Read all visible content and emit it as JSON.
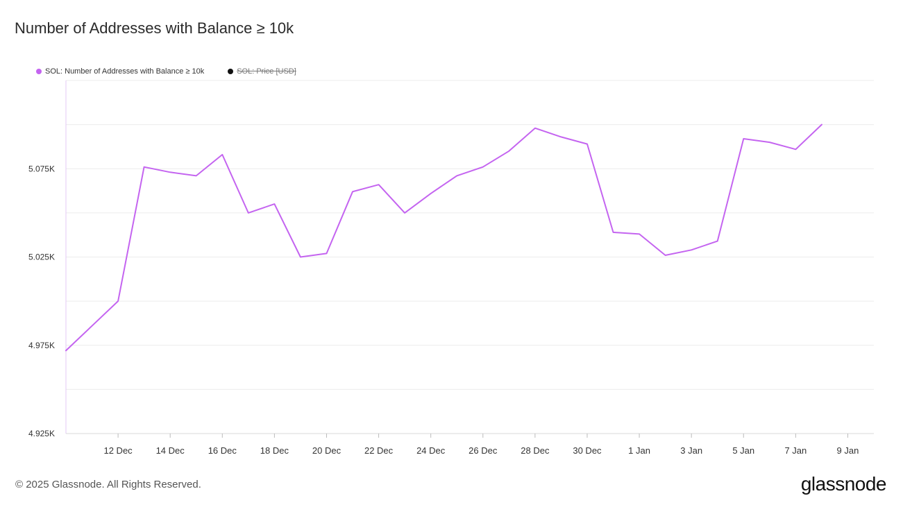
{
  "title": "Number of Addresses with Balance ≥ 10k",
  "legend": [
    {
      "label": "SOL: Number of Addresses with Balance ≥ 10k",
      "color": "#c464f0",
      "active": true
    },
    {
      "label": "SOL: Price [USD]",
      "color": "#111111",
      "active": false
    }
  ],
  "footer": "© 2025 Glassnode. All Rights Reserved.",
  "brand": "glassnode",
  "chart_data": {
    "type": "line",
    "series": [
      {
        "name": "SOL: Number of Addresses with Balance ≥ 10k",
        "color": "#c464f0",
        "x": [
          "2024-12-10",
          "2024-12-11",
          "2024-12-12",
          "2024-12-13",
          "2024-12-14",
          "2024-12-15",
          "2024-12-16",
          "2024-12-17",
          "2024-12-18",
          "2024-12-19",
          "2024-12-20",
          "2024-12-21",
          "2024-12-22",
          "2024-12-23",
          "2024-12-24",
          "2024-12-25",
          "2024-12-26",
          "2024-12-27",
          "2024-12-28",
          "2024-12-29",
          "2024-12-30",
          "2024-12-31",
          "2025-01-01",
          "2025-01-02",
          "2025-01-03",
          "2025-01-04",
          "2025-01-05",
          "2025-01-06",
          "2025-01-07",
          "2025-01-08"
        ],
        "values": [
          4972,
          4986,
          5000,
          5076,
          5073,
          5071,
          5083,
          5050,
          5055,
          5025,
          5027,
          5062,
          5066,
          5050,
          5061,
          5071,
          5076,
          5085,
          5098,
          5093,
          5089,
          5039,
          5038,
          5026,
          5029,
          5034,
          5092,
          5090,
          5086,
          5100
        ]
      }
    ],
    "ylim": [
      4925,
      5125
    ],
    "yticks": [
      4925,
      4975,
      5025,
      5075
    ],
    "ytick_labels": [
      "4.925K",
      "4.975K",
      "5.025K",
      "5.075K"
    ],
    "xticks": [
      "2024-12-12",
      "2024-12-14",
      "2024-12-16",
      "2024-12-18",
      "2024-12-20",
      "2024-12-22",
      "2024-12-24",
      "2024-12-26",
      "2024-12-28",
      "2024-12-30",
      "2025-01-01",
      "2025-01-03",
      "2025-01-05",
      "2025-01-07",
      "2025-01-09"
    ],
    "xtick_labels": [
      "12 Dec",
      "14 Dec",
      "16 Dec",
      "18 Dec",
      "20 Dec",
      "22 Dec",
      "24 Dec",
      "26 Dec",
      "28 Dec",
      "30 Dec",
      "1 Jan",
      "3 Jan",
      "5 Jan",
      "7 Jan",
      "9 Jan"
    ],
    "xlim": [
      "2024-12-10",
      "2025-01-10"
    ],
    "grid": true,
    "legend_position": "top-left"
  }
}
